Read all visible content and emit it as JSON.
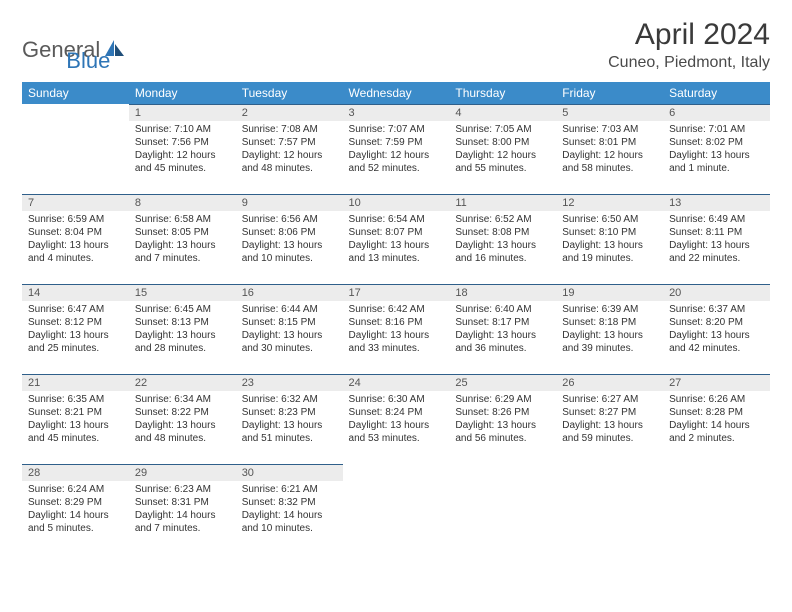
{
  "logo": {
    "general": "General",
    "blue": "Blue"
  },
  "title": "April 2024",
  "location": "Cuneo, Piedmont, Italy",
  "colors": {
    "header_bg": "#3b8bc9",
    "header_fg": "#ffffff",
    "daynum_bg": "#ececec",
    "daynum_border": "#2f5f8a",
    "text": "#333333",
    "logo_gray": "#5a5a5a",
    "logo_blue": "#2e75b6"
  },
  "weekdays": [
    "Sunday",
    "Monday",
    "Tuesday",
    "Wednesday",
    "Thursday",
    "Friday",
    "Saturday"
  ],
  "weeks": [
    [
      null,
      {
        "n": "1",
        "sr": "Sunrise: 7:10 AM",
        "ss": "Sunset: 7:56 PM",
        "dl": "Daylight: 12 hours and 45 minutes."
      },
      {
        "n": "2",
        "sr": "Sunrise: 7:08 AM",
        "ss": "Sunset: 7:57 PM",
        "dl": "Daylight: 12 hours and 48 minutes."
      },
      {
        "n": "3",
        "sr": "Sunrise: 7:07 AM",
        "ss": "Sunset: 7:59 PM",
        "dl": "Daylight: 12 hours and 52 minutes."
      },
      {
        "n": "4",
        "sr": "Sunrise: 7:05 AM",
        "ss": "Sunset: 8:00 PM",
        "dl": "Daylight: 12 hours and 55 minutes."
      },
      {
        "n": "5",
        "sr": "Sunrise: 7:03 AM",
        "ss": "Sunset: 8:01 PM",
        "dl": "Daylight: 12 hours and 58 minutes."
      },
      {
        "n": "6",
        "sr": "Sunrise: 7:01 AM",
        "ss": "Sunset: 8:02 PM",
        "dl": "Daylight: 13 hours and 1 minute."
      }
    ],
    [
      {
        "n": "7",
        "sr": "Sunrise: 6:59 AM",
        "ss": "Sunset: 8:04 PM",
        "dl": "Daylight: 13 hours and 4 minutes."
      },
      {
        "n": "8",
        "sr": "Sunrise: 6:58 AM",
        "ss": "Sunset: 8:05 PM",
        "dl": "Daylight: 13 hours and 7 minutes."
      },
      {
        "n": "9",
        "sr": "Sunrise: 6:56 AM",
        "ss": "Sunset: 8:06 PM",
        "dl": "Daylight: 13 hours and 10 minutes."
      },
      {
        "n": "10",
        "sr": "Sunrise: 6:54 AM",
        "ss": "Sunset: 8:07 PM",
        "dl": "Daylight: 13 hours and 13 minutes."
      },
      {
        "n": "11",
        "sr": "Sunrise: 6:52 AM",
        "ss": "Sunset: 8:08 PM",
        "dl": "Daylight: 13 hours and 16 minutes."
      },
      {
        "n": "12",
        "sr": "Sunrise: 6:50 AM",
        "ss": "Sunset: 8:10 PM",
        "dl": "Daylight: 13 hours and 19 minutes."
      },
      {
        "n": "13",
        "sr": "Sunrise: 6:49 AM",
        "ss": "Sunset: 8:11 PM",
        "dl": "Daylight: 13 hours and 22 minutes."
      }
    ],
    [
      {
        "n": "14",
        "sr": "Sunrise: 6:47 AM",
        "ss": "Sunset: 8:12 PM",
        "dl": "Daylight: 13 hours and 25 minutes."
      },
      {
        "n": "15",
        "sr": "Sunrise: 6:45 AM",
        "ss": "Sunset: 8:13 PM",
        "dl": "Daylight: 13 hours and 28 minutes."
      },
      {
        "n": "16",
        "sr": "Sunrise: 6:44 AM",
        "ss": "Sunset: 8:15 PM",
        "dl": "Daylight: 13 hours and 30 minutes."
      },
      {
        "n": "17",
        "sr": "Sunrise: 6:42 AM",
        "ss": "Sunset: 8:16 PM",
        "dl": "Daylight: 13 hours and 33 minutes."
      },
      {
        "n": "18",
        "sr": "Sunrise: 6:40 AM",
        "ss": "Sunset: 8:17 PM",
        "dl": "Daylight: 13 hours and 36 minutes."
      },
      {
        "n": "19",
        "sr": "Sunrise: 6:39 AM",
        "ss": "Sunset: 8:18 PM",
        "dl": "Daylight: 13 hours and 39 minutes."
      },
      {
        "n": "20",
        "sr": "Sunrise: 6:37 AM",
        "ss": "Sunset: 8:20 PM",
        "dl": "Daylight: 13 hours and 42 minutes."
      }
    ],
    [
      {
        "n": "21",
        "sr": "Sunrise: 6:35 AM",
        "ss": "Sunset: 8:21 PM",
        "dl": "Daylight: 13 hours and 45 minutes."
      },
      {
        "n": "22",
        "sr": "Sunrise: 6:34 AM",
        "ss": "Sunset: 8:22 PM",
        "dl": "Daylight: 13 hours and 48 minutes."
      },
      {
        "n": "23",
        "sr": "Sunrise: 6:32 AM",
        "ss": "Sunset: 8:23 PM",
        "dl": "Daylight: 13 hours and 51 minutes."
      },
      {
        "n": "24",
        "sr": "Sunrise: 6:30 AM",
        "ss": "Sunset: 8:24 PM",
        "dl": "Daylight: 13 hours and 53 minutes."
      },
      {
        "n": "25",
        "sr": "Sunrise: 6:29 AM",
        "ss": "Sunset: 8:26 PM",
        "dl": "Daylight: 13 hours and 56 minutes."
      },
      {
        "n": "26",
        "sr": "Sunrise: 6:27 AM",
        "ss": "Sunset: 8:27 PM",
        "dl": "Daylight: 13 hours and 59 minutes."
      },
      {
        "n": "27",
        "sr": "Sunrise: 6:26 AM",
        "ss": "Sunset: 8:28 PM",
        "dl": "Daylight: 14 hours and 2 minutes."
      }
    ],
    [
      {
        "n": "28",
        "sr": "Sunrise: 6:24 AM",
        "ss": "Sunset: 8:29 PM",
        "dl": "Daylight: 14 hours and 5 minutes."
      },
      {
        "n": "29",
        "sr": "Sunrise: 6:23 AM",
        "ss": "Sunset: 8:31 PM",
        "dl": "Daylight: 14 hours and 7 minutes."
      },
      {
        "n": "30",
        "sr": "Sunrise: 6:21 AM",
        "ss": "Sunset: 8:32 PM",
        "dl": "Daylight: 14 hours and 10 minutes."
      },
      null,
      null,
      null,
      null
    ]
  ]
}
